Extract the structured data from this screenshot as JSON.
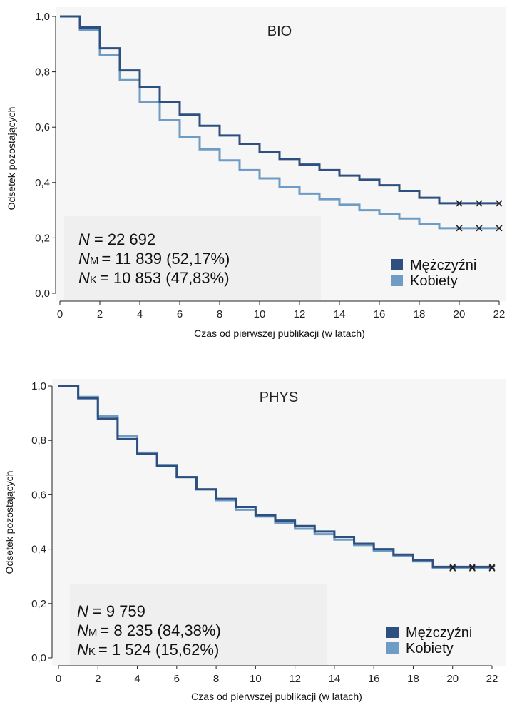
{
  "chart_data": [
    {
      "type": "line",
      "title": "BIO",
      "xlabel": "Czas od pierwszej publikacji (w latach)",
      "ylabel": "Odsetek pozostających",
      "xlim": [
        0,
        22
      ],
      "ylim": [
        0,
        1
      ],
      "x_ticks": [
        "0",
        "2",
        "4",
        "6",
        "8",
        "10",
        "12",
        "14",
        "16",
        "18",
        "20",
        "22"
      ],
      "y_ticks": [
        "0,0",
        "0,2",
        "0,4",
        "0,6",
        "0,8",
        "1,0"
      ],
      "stats": {
        "n_label": "N",
        "n_value": "= 22 692",
        "m_label": "N",
        "m_sub": "M",
        "m_value": "= 11 839 (52,17%)",
        "k_label": "N",
        "k_sub": "K",
        "k_value": "= 10 853 (47,83%)"
      },
      "series": [
        {
          "name": "Mężczyźni",
          "color": "#2e5080",
          "x": [
            0,
            1,
            2,
            3,
            4,
            5,
            6,
            7,
            8,
            9,
            10,
            11,
            12,
            13,
            14,
            15,
            16,
            17,
            18,
            19,
            20,
            21,
            22
          ],
          "y": [
            1.0,
            0.96,
            0.885,
            0.805,
            0.745,
            0.69,
            0.645,
            0.605,
            0.57,
            0.54,
            0.51,
            0.485,
            0.465,
            0.445,
            0.425,
            0.41,
            0.39,
            0.37,
            0.345,
            0.325,
            0.325,
            0.325,
            0.325
          ],
          "censored_x": [
            20,
            21,
            22
          ]
        },
        {
          "name": "Kobiety",
          "color": "#6f9cc4",
          "x": [
            0,
            1,
            2,
            3,
            4,
            5,
            6,
            7,
            8,
            9,
            10,
            11,
            12,
            13,
            14,
            15,
            16,
            17,
            18,
            19,
            20,
            21,
            22
          ],
          "y": [
            1.0,
            0.95,
            0.86,
            0.77,
            0.69,
            0.625,
            0.565,
            0.52,
            0.48,
            0.445,
            0.415,
            0.385,
            0.36,
            0.34,
            0.32,
            0.3,
            0.285,
            0.27,
            0.25,
            0.235,
            0.235,
            0.235,
            0.235
          ],
          "censored_x": [
            20,
            21,
            22
          ]
        }
      ]
    },
    {
      "type": "line",
      "title": "PHYS",
      "xlabel": "Czas od pierwszej publikacji (w latach)",
      "ylabel": "Odsetek pozostających",
      "xlim": [
        0,
        22
      ],
      "ylim": [
        0,
        1
      ],
      "x_ticks": [
        "0",
        "2",
        "4",
        "6",
        "8",
        "10",
        "12",
        "14",
        "16",
        "18",
        "20",
        "22"
      ],
      "y_ticks": [
        "0,0",
        "0,2",
        "0,4",
        "0,6",
        "0,8",
        "1,0"
      ],
      "stats": {
        "n_label": "N",
        "n_value": "= 9 759",
        "m_label": "N",
        "m_sub": "M",
        "m_value": "= 8 235 (84,38%)",
        "k_label": "N",
        "k_sub": "K",
        "k_value": "= 1 524 (15,62%)"
      },
      "series": [
        {
          "name": "Mężczyźni",
          "color": "#2e5080",
          "x": [
            0,
            1,
            2,
            3,
            4,
            5,
            6,
            7,
            8,
            9,
            10,
            11,
            12,
            13,
            14,
            15,
            16,
            17,
            18,
            19,
            20,
            21,
            22
          ],
          "y": [
            1.0,
            0.955,
            0.88,
            0.805,
            0.75,
            0.705,
            0.665,
            0.62,
            0.585,
            0.555,
            0.525,
            0.505,
            0.485,
            0.465,
            0.445,
            0.42,
            0.4,
            0.38,
            0.36,
            0.335,
            0.335,
            0.335,
            0.335
          ],
          "censored_x": [
            20,
            21,
            22
          ]
        },
        {
          "name": "Kobiety",
          "color": "#6f9cc4",
          "x": [
            0,
            1,
            2,
            3,
            4,
            5,
            6,
            7,
            8,
            9,
            10,
            11,
            12,
            13,
            14,
            15,
            16,
            17,
            18,
            19,
            20,
            21,
            22
          ],
          "y": [
            1.0,
            0.96,
            0.89,
            0.815,
            0.755,
            0.71,
            0.665,
            0.62,
            0.58,
            0.545,
            0.52,
            0.495,
            0.475,
            0.455,
            0.435,
            0.415,
            0.395,
            0.375,
            0.355,
            0.33,
            0.33,
            0.33,
            0.33
          ],
          "censored_x": [
            20,
            21,
            22
          ]
        }
      ]
    }
  ]
}
